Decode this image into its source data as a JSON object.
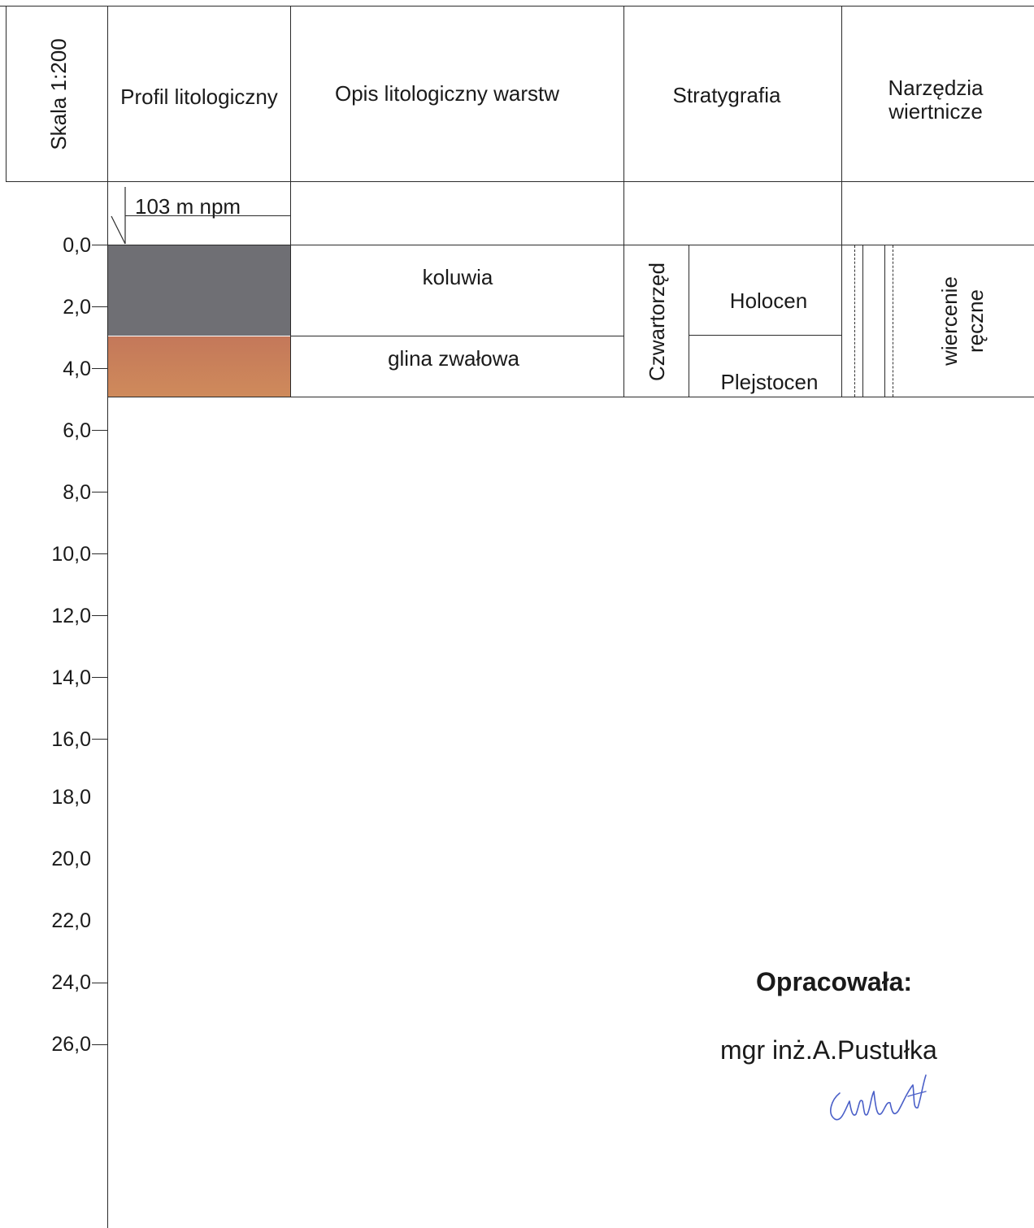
{
  "header": {
    "scale": "Skala 1:200",
    "profile": "Profil litologiczny",
    "description": "Opis litologiczny warstw",
    "stratigraphy": "Stratygrafia",
    "tools_line1": "Narzędzia",
    "tools_line2": "wiertnicze"
  },
  "elevation_label": "103 m npm",
  "depth_ticks": [
    "0,0",
    "2,0",
    "4,0",
    "6,0",
    "8,0",
    "10,0",
    "12,0",
    "14,0",
    "16,0",
    "18,0",
    "20,0",
    "22,0",
    "24,0",
    "26,0"
  ],
  "layers": [
    {
      "name": "koluwia",
      "top": "0,0",
      "bottom": "3,0",
      "color": "#6f6f74"
    },
    {
      "name": "glina zwałowa",
      "top": "3,0",
      "bottom": "5,0",
      "color": "#c8805a"
    }
  ],
  "stratigraphy": {
    "era": "Czwartorzęd",
    "epochs": [
      "Holocen",
      "Plejstocen"
    ]
  },
  "tools": {
    "method_line1": "wiercenie",
    "method_line2": "ręczne"
  },
  "footer": {
    "prepared_by_label": "Opracowała:",
    "author": "mgr inż.A.Pustułka"
  }
}
